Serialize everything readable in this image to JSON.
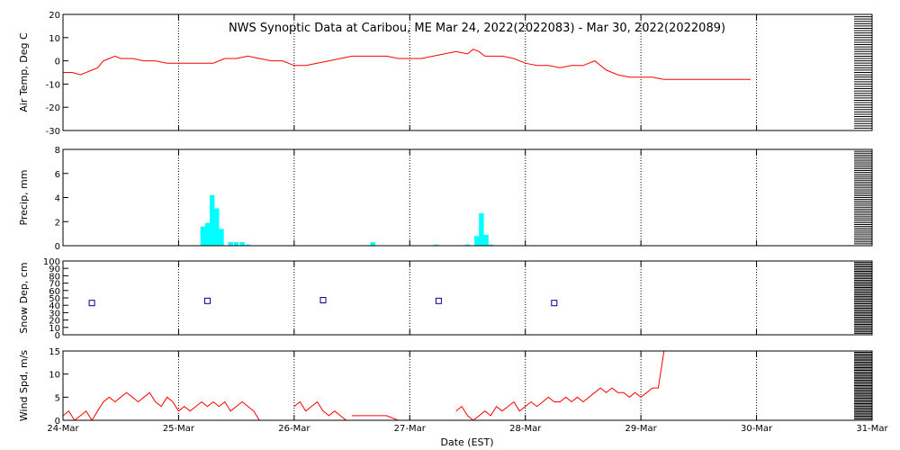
{
  "title": "NWS Synoptic Data at Caribou, ME   Mar 24, 2022(2022083) - Mar 30, 2022(2022089)",
  "xlabel": "Date (EST)",
  "x_ticks": [
    "24-Mar",
    "25-Mar",
    "26-Mar",
    "27-Mar",
    "28-Mar",
    "29-Mar",
    "30-Mar",
    "31-Mar"
  ],
  "colors": {
    "temp": "#ff0000",
    "precip": "#00ffff",
    "snow": "#00008b",
    "wind": "#ff0000",
    "axes": "#000000"
  },
  "chart_data": [
    {
      "type": "line",
      "ylabel": "Air Temp, Deg C",
      "xlim": [
        0,
        7
      ],
      "ylim": [
        -30,
        20
      ],
      "y_ticks": [
        "-30",
        "-20",
        "-10",
        "0",
        "10",
        "20"
      ],
      "grid": "vertical-dotted",
      "x": [
        0.0,
        0.08,
        0.15,
        0.25,
        0.3,
        0.35,
        0.4,
        0.45,
        0.5,
        0.55,
        0.6,
        0.7,
        0.8,
        0.9,
        1.0,
        1.1,
        1.2,
        1.3,
        1.4,
        1.5,
        1.6,
        1.7,
        1.8,
        1.9,
        2.0,
        2.1,
        2.2,
        2.3,
        2.4,
        2.5,
        2.6,
        2.7,
        2.8,
        2.9,
        3.0,
        3.1,
        3.2,
        3.3,
        3.4,
        3.5,
        3.55,
        3.6,
        3.65,
        3.7,
        3.8,
        3.9,
        4.0,
        4.1,
        4.2,
        4.3,
        4.4,
        4.5,
        4.6,
        4.7,
        4.8,
        4.9,
        5.0,
        5.1,
        5.2,
        5.4,
        5.6,
        5.8,
        5.95
      ],
      "y": [
        -5,
        -5,
        -6,
        -4,
        -3,
        0,
        1,
        2,
        1,
        1,
        1,
        0,
        0,
        -1,
        -1,
        -1,
        -1,
        -1,
        1,
        1,
        2,
        1,
        0,
        0,
        -2,
        -2,
        -1,
        0,
        1,
        2,
        2,
        2,
        2,
        1,
        1,
        1,
        2,
        3,
        4,
        3,
        5,
        4,
        2,
        2,
        2,
        1,
        -1,
        -2,
        -2,
        -3,
        -2,
        -2,
        0,
        -4,
        -6,
        -7,
        -7,
        -7,
        -8,
        -8,
        -8,
        -8,
        -8
      ]
    },
    {
      "type": "bar",
      "ylabel": "Precip, mm",
      "xlim": [
        0,
        7
      ],
      "ylim": [
        0,
        8
      ],
      "y_ticks": [
        "0",
        "2",
        "4",
        "6",
        "8"
      ],
      "grid": "vertical-dotted",
      "bar_width": 0.042,
      "x": [
        1.21,
        1.25,
        1.29,
        1.33,
        1.37,
        1.45,
        1.5,
        1.55,
        1.6,
        2.68,
        3.23,
        3.5,
        3.58,
        3.62,
        3.66,
        3.7
      ],
      "values": [
        1.6,
        1.9,
        4.2,
        3.1,
        1.4,
        0.3,
        0.3,
        0.3,
        0.1,
        0.3,
        0.1,
        0.1,
        0.8,
        2.7,
        0.9,
        0.1
      ]
    },
    {
      "type": "scatter",
      "ylabel": "Snow Dep, cm",
      "xlim": [
        0,
        7
      ],
      "ylim": [
        0,
        100
      ],
      "y_ticks": [
        "0",
        "10",
        "20",
        "30",
        "40",
        "50",
        "60",
        "70",
        "80",
        "90",
        "100"
      ],
      "grid": "vertical-dotted",
      "x": [
        0.25,
        1.25,
        2.25,
        3.25,
        4.25
      ],
      "y": [
        43,
        46,
        47,
        46,
        43
      ]
    },
    {
      "type": "line",
      "ylabel": "Wind Spd, m/s",
      "xlim": [
        0,
        7
      ],
      "ylim": [
        0,
        15
      ],
      "y_ticks": [
        "0",
        "5",
        "10",
        "15"
      ],
      "grid": "vertical-dotted",
      "segments": [
        {
          "x": [
            0.0,
            0.05,
            0.1,
            0.15,
            0.2,
            0.25,
            0.3,
            0.35,
            0.4,
            0.45,
            0.5,
            0.55,
            0.6,
            0.65,
            0.7,
            0.75,
            0.8,
            0.85,
            0.9,
            0.95,
            1.0,
            1.05,
            1.1,
            1.15,
            1.2,
            1.25,
            1.3,
            1.35,
            1.4,
            1.45,
            1.5,
            1.55,
            1.6,
            1.65,
            1.7
          ],
          "y": [
            1,
            2,
            0,
            1,
            2,
            0,
            2,
            4,
            5,
            4,
            5,
            6,
            5,
            4,
            5,
            6,
            4,
            3,
            5,
            4,
            2,
            3,
            2,
            3,
            4,
            3,
            4,
            3,
            4,
            2,
            3,
            4,
            3,
            2,
            0
          ]
        },
        {
          "x": [
            2.0,
            2.05,
            2.1,
            2.15,
            2.2,
            2.25,
            2.3,
            2.35,
            2.4,
            2.45
          ],
          "y": [
            3,
            4,
            2,
            3,
            4,
            2,
            1,
            2,
            1,
            0
          ]
        },
        {
          "x": [
            2.5,
            2.6,
            2.7,
            2.8,
            2.9,
            3.0
          ],
          "y": [
            1,
            1,
            1,
            1,
            0,
            0
          ]
        },
        {
          "x": [
            3.4,
            3.45,
            3.5,
            3.55,
            3.6,
            3.65,
            3.7,
            3.75,
            3.8,
            3.85,
            3.9,
            3.95,
            4.0,
            4.05,
            4.1,
            4.15,
            4.2,
            4.25,
            4.3,
            4.35,
            4.4,
            4.45,
            4.5,
            4.55,
            4.6,
            4.65,
            4.7,
            4.75,
            4.8,
            4.85,
            4.9,
            4.95,
            5.0,
            5.05,
            5.1,
            5.15,
            5.2
          ],
          "y": [
            2,
            3,
            1,
            0,
            1,
            2,
            1,
            3,
            2,
            3,
            4,
            2,
            3,
            4,
            3,
            4,
            5,
            4,
            4,
            5,
            4,
            5,
            4,
            5,
            6,
            7,
            6,
            7,
            6,
            6,
            5,
            6,
            5,
            6,
            7,
            7,
            15
          ]
        }
      ]
    }
  ]
}
